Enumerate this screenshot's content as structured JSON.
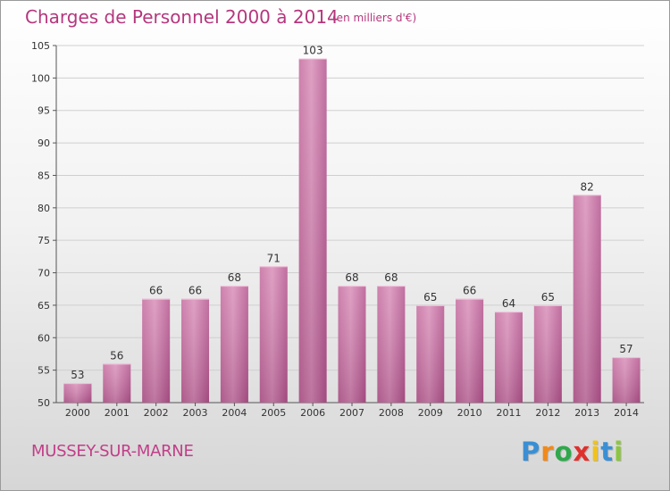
{
  "chart_data": {
    "type": "bar",
    "title": "Charges de Personnel 2000 à 2014",
    "subtitle": "(en milliers d'€)",
    "categories": [
      "2000",
      "2001",
      "2002",
      "2003",
      "2004",
      "2005",
      "2006",
      "2007",
      "2008",
      "2009",
      "2010",
      "2011",
      "2012",
      "2013",
      "2014"
    ],
    "values": [
      53,
      56,
      66,
      66,
      68,
      71,
      103,
      68,
      68,
      65,
      66,
      64,
      65,
      82,
      57
    ],
    "ylim": [
      50,
      105
    ],
    "yticks": [
      50,
      55,
      60,
      65,
      70,
      75,
      80,
      85,
      90,
      95,
      100,
      105
    ],
    "grid": true,
    "bar_color": "#d98fb9"
  },
  "footer": {
    "place": "MUSSEY-SUR-MARNE",
    "logo": [
      "P",
      "r",
      "o",
      "x",
      "i",
      "t",
      "i"
    ],
    "logo_colors": [
      "#3a8fd4",
      "#f08a1c",
      "#2ea84b",
      "#e0302c",
      "#f2c21b",
      "#3a8fd4",
      "#8cc63f"
    ]
  }
}
